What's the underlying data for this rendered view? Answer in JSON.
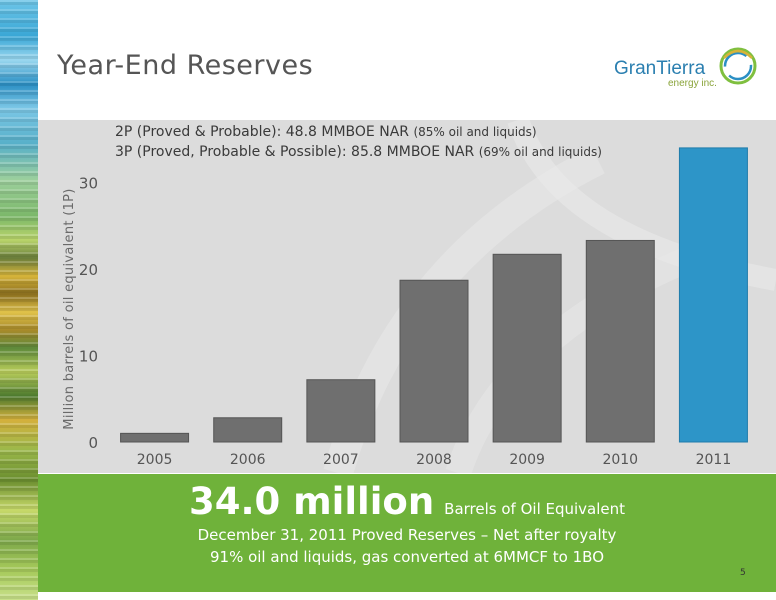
{
  "slide": {
    "title": "Year-End Reserves",
    "page_number": "5"
  },
  "logo": {
    "name": "GranTierra",
    "sub": "energy inc.",
    "colors": [
      "#2b7fb0",
      "#8aa43a"
    ]
  },
  "notes": {
    "line1_main": "2P (Proved & Probable): 48.8 MMBOE NAR",
    "line1_small": "(85% oil and liquids)",
    "line2_main": "3P (Proved, Probable & Possible): 85.8 MMBOE NAR",
    "line2_small": "(69% oil and liquids)"
  },
  "chart_data": {
    "type": "bar",
    "categories": [
      "2005",
      "2006",
      "2007",
      "2008",
      "2009",
      "2010",
      "2011"
    ],
    "values": [
      1.0,
      2.8,
      7.2,
      18.7,
      21.7,
      23.3,
      34.0
    ],
    "ylabel": "Million barrels of oil equivalent (1P)",
    "yticks": [
      0,
      10,
      20,
      30
    ],
    "ylim": [
      0,
      35
    ],
    "grid": false,
    "colors": {
      "bar": "#6f6f6f",
      "highlight": "#2d95c8",
      "highlight_category": "2011",
      "background": "#dcdcdc"
    }
  },
  "summary": {
    "big_number": "34.0 million",
    "big_unit": "Barrels of Oil Equivalent",
    "line2": "December 31, 2011 Proved Reserves – Net after royalty",
    "line3": "91% oil and liquids, gas converted at 6MMCF to 1BO",
    "color": "#6fb23a"
  }
}
